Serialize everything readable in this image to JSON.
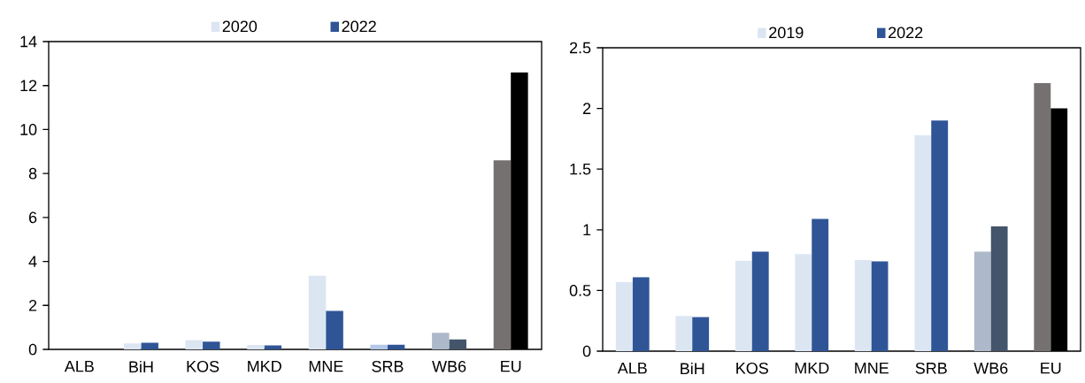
{
  "chart_data": [
    {
      "type": "bar",
      "categories": [
        "ALB",
        "BiH",
        "KOS",
        "MKD",
        "MNE",
        "SRB",
        "WB6",
        "EU"
      ],
      "ylim": [
        0,
        14
      ],
      "yticks": [
        0,
        2,
        4,
        6,
        8,
        10,
        12,
        14
      ],
      "legend": "top",
      "grid": false,
      "series": [
        {
          "name": "2020",
          "color": "#dce6f2",
          "colors": [
            "#dce6f2",
            "#dce6f2",
            "#dce6f2",
            "#dce6f2",
            "#dce6f2",
            "#b4c7e7",
            "#adb9ca",
            "#767171"
          ],
          "values": [
            null,
            0.27,
            0.42,
            0.2,
            3.35,
            0.22,
            0.75,
            8.6
          ]
        },
        {
          "name": "2022",
          "color": "#2f5597",
          "colors": [
            "#2f5597",
            "#2f5597",
            "#2f5597",
            "#2f5597",
            "#2f5597",
            "#2f5597",
            "#44546a",
            "#000000"
          ],
          "values": [
            null,
            0.3,
            0.35,
            0.18,
            1.75,
            0.22,
            0.45,
            12.6
          ]
        }
      ]
    },
    {
      "type": "bar",
      "categories": [
        "ALB",
        "BiH",
        "KOS",
        "MKD",
        "MNE",
        "SRB",
        "WB6",
        "EU"
      ],
      "ylim": [
        0,
        2.5
      ],
      "yticks": [
        0,
        0.5,
        1,
        1.5,
        2,
        2.5
      ],
      "legend": "top",
      "grid": false,
      "series": [
        {
          "name": "2019",
          "color": "#dce6f2",
          "colors": [
            "#dce6f2",
            "#dce6f2",
            "#dce6f2",
            "#dce6f2",
            "#dce6f2",
            "#dce6f2",
            "#adb9ca",
            "#767171"
          ],
          "values": [
            0.57,
            0.29,
            0.745,
            0.8,
            0.75,
            1.78,
            0.82,
            2.21
          ]
        },
        {
          "name": "2022",
          "color": "#2f5597",
          "colors": [
            "#2f5597",
            "#2f5597",
            "#2f5597",
            "#2f5597",
            "#2f5597",
            "#2f5597",
            "#44546a",
            "#000000"
          ],
          "values": [
            0.61,
            0.28,
            0.82,
            1.09,
            0.74,
            1.9,
            1.03,
            2.0
          ]
        }
      ]
    }
  ]
}
